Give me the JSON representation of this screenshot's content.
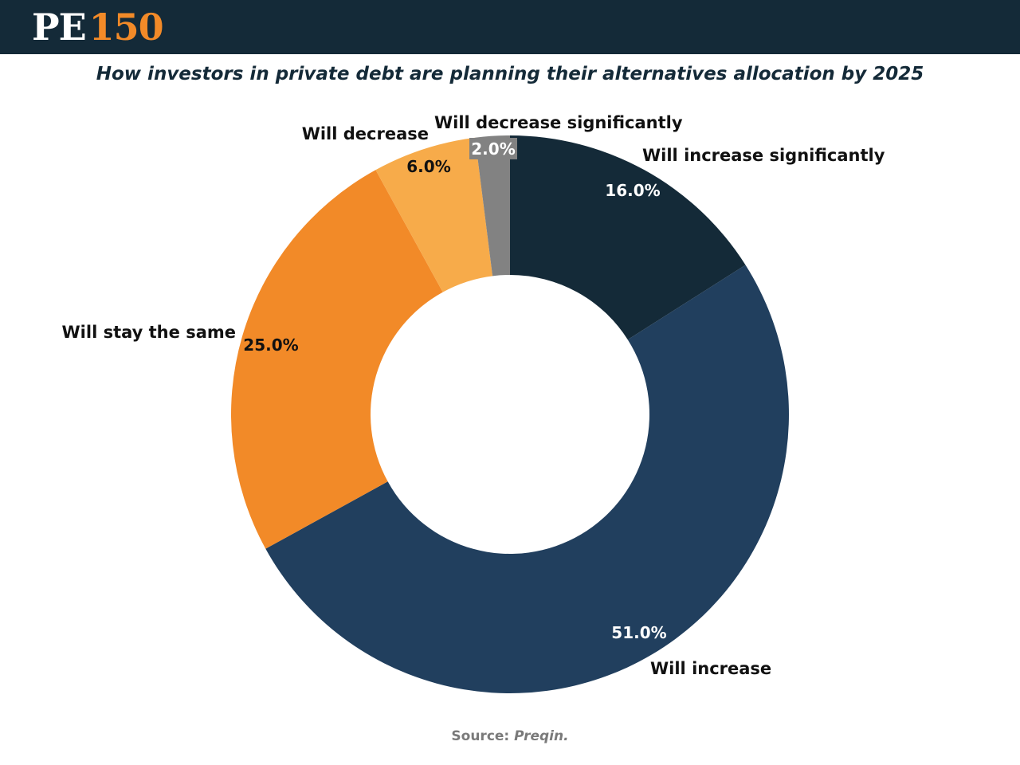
{
  "header": {
    "logo_pe": "PE",
    "logo_num": "150",
    "bar_color": "#142a38",
    "accent_color": "#f28a28"
  },
  "chart_data": {
    "type": "pie",
    "donut": true,
    "title": "How investors in private debt are planning their alternatives allocation by 2025",
    "start_angle_deg": 0,
    "direction": "clockwise",
    "slices": [
      {
        "label": "Will increase significantly",
        "value": 16.0,
        "value_label": "16.0%",
        "color": "#142a38",
        "value_label_color": "#ffffff"
      },
      {
        "label": "Will increase",
        "value": 51.0,
        "value_label": "51.0%",
        "color": "#213f5e",
        "value_label_color": "#ffffff"
      },
      {
        "label": "Will stay the same",
        "value": 25.0,
        "value_label": "25.0%",
        "color": "#f28a28",
        "value_label_color": "#111111"
      },
      {
        "label": "Will decrease",
        "value": 6.0,
        "value_label": "6.0%",
        "color": "#f7ab4a",
        "value_label_color": "#111111"
      },
      {
        "label": "Will decrease significantly",
        "value": 2.0,
        "value_label": "2.0%",
        "color": "#828282",
        "value_label_color": "#ffffff"
      }
    ],
    "legend": "none"
  },
  "source": {
    "prefix": "Source:",
    "name": "Preqin."
  }
}
